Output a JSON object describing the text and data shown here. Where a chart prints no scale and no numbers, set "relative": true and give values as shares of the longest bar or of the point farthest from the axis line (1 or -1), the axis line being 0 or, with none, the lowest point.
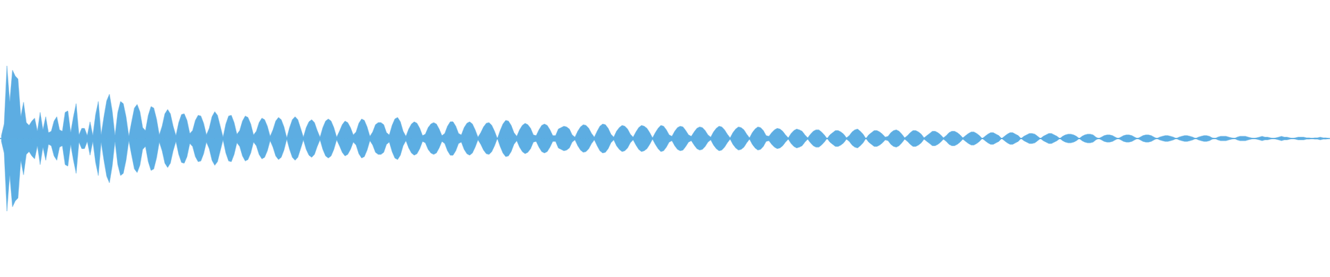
{
  "chart_data": {
    "type": "area",
    "relative": true,
    "tick_labels": false,
    "categories": [
      null,
      null,
      null,
      null,
      null,
      null,
      null,
      null,
      null,
      null,
      null,
      null,
      null,
      null,
      null,
      null,
      null,
      null,
      null,
      null,
      null,
      null,
      null,
      null,
      null,
      null,
      null,
      null,
      null,
      null,
      null,
      null,
      null,
      null,
      null,
      null,
      null,
      null,
      null,
      null,
      null,
      null,
      null,
      null,
      null,
      null,
      null,
      null,
      null,
      null,
      null,
      null,
      null,
      null,
      null,
      null,
      null,
      null,
      null,
      null,
      null,
      null,
      null,
      null,
      null,
      null,
      null,
      null,
      null,
      null,
      null,
      null,
      null,
      null,
      null,
      null,
      null,
      null,
      null,
      null,
      null,
      null,
      null,
      null,
      null,
      null,
      null,
      null,
      null,
      null,
      null,
      null,
      null,
      null,
      null,
      null,
      null,
      null,
      null,
      null,
      null,
      null,
      null,
      null,
      null,
      null,
      null,
      null,
      null,
      null,
      null,
      null,
      null,
      null,
      null,
      null,
      null,
      null,
      null,
      null,
      null,
      null,
      null,
      null,
      null,
      null,
      null,
      null,
      null,
      null,
      null,
      null,
      null,
      null,
      null,
      null,
      null,
      null,
      null,
      null,
      null,
      null,
      null,
      null,
      null,
      null,
      null,
      null,
      null,
      null,
      null,
      null,
      null,
      null,
      null,
      null,
      null,
      null,
      null,
      null,
      null,
      null,
      null,
      null,
      null,
      null,
      null,
      null,
      null,
      null,
      null,
      null,
      null,
      null,
      null,
      null,
      null,
      null,
      null,
      null,
      null,
      null,
      null,
      null,
      null,
      null,
      null,
      null,
      null,
      null,
      null,
      null,
      null,
      null,
      null,
      null,
      null,
      null,
      null,
      null,
      null,
      null,
      null,
      null,
      null,
      null,
      null,
      null,
      null,
      null,
      null,
      null,
      null,
      null,
      null,
      null,
      null,
      null,
      null,
      null,
      null,
      null,
      null,
      null,
      null,
      null,
      null,
      null,
      null,
      null,
      null,
      null,
      null,
      null,
      null,
      null,
      null,
      null,
      null,
      null,
      null,
      null,
      null,
      null,
      null,
      null,
      null,
      null,
      null,
      null,
      null,
      null,
      null,
      null,
      null,
      null,
      null,
      null,
      null,
      null,
      null,
      null,
      null,
      null,
      null,
      null,
      null,
      null,
      null,
      null,
      null,
      null,
      null,
      null,
      null,
      null,
      null,
      null,
      null,
      null,
      null,
      null,
      null,
      null,
      null,
      null,
      null,
      null,
      null,
      null,
      null,
      null,
      null,
      null,
      null,
      null,
      null,
      null,
      null,
      null,
      null,
      null,
      null,
      null,
      null,
      null,
      null,
      null,
      null,
      null,
      null,
      null,
      null,
      null,
      null,
      null,
      null,
      null,
      null,
      null,
      null,
      null,
      null,
      null,
      null,
      null,
      null,
      null,
      null,
      null,
      null,
      null,
      null,
      null,
      null,
      null,
      null,
      null,
      null,
      null,
      null,
      null,
      null,
      null,
      null,
      null,
      null,
      null,
      null,
      null,
      null,
      null,
      null,
      null,
      null,
      null,
      null,
      null,
      null,
      null,
      null,
      null,
      null,
      null,
      null,
      null,
      null,
      null,
      null,
      null,
      null,
      null,
      null,
      null,
      null,
      null,
      null,
      null,
      null,
      null,
      null,
      null,
      null,
      null,
      null,
      null,
      null,
      null,
      null,
      null,
      null,
      null,
      null,
      null,
      null,
      null,
      null,
      null,
      null,
      null,
      null,
      null,
      null,
      null,
      null,
      null,
      null,
      null,
      null,
      null,
      null,
      null,
      null,
      null,
      null,
      null,
      null,
      null,
      null,
      null,
      null,
      null,
      null,
      null,
      null,
      null,
      null,
      null,
      null,
      null,
      null,
      null,
      null,
      null,
      null,
      null,
      null,
      null,
      null,
      null,
      null,
      null,
      null,
      null,
      null,
      null,
      null,
      null,
      null,
      null,
      null,
      null,
      null,
      null,
      null,
      null,
      null,
      null,
      null,
      null,
      null,
      null,
      null,
      null,
      null,
      null,
      null,
      null,
      null,
      null,
      null,
      null,
      null,
      null,
      null,
      null,
      null,
      null,
      null,
      null
    ],
    "series": [
      {
        "color": "#5dade2",
        "values": [
          0.04,
          0.2,
          1.0,
          0.5,
          0.94,
          0.86,
          0.82,
          0.3,
          0.5,
          0.22,
          0.18,
          0.24,
          0.28,
          0.1,
          0.36,
          0.12,
          0.3,
          0.08,
          0.1,
          0.24,
          0.3,
          0.12,
          0.1,
          0.36,
          0.38,
          0.08,
          0.3,
          0.48,
          0.05,
          0.14,
          0.14,
          0.04,
          0.23,
          0.04,
          0.33,
          0.51,
          0.05,
          0.3,
          0.52,
          0.61,
          0.38,
          0.04,
          0.36,
          0.51,
          0.48,
          0.3,
          0.03,
          0.23,
          0.42,
          0.47,
          0.37,
          0.15,
          0.11,
          0.32,
          0.44,
          0.42,
          0.27,
          0.05,
          0.17,
          0.34,
          0.4,
          0.34,
          0.17,
          0.04,
          0.22,
          0.33,
          0.34,
          0.25,
          0.07,
          0.11,
          0.25,
          0.32,
          0.31,
          0.21,
          0.05,
          0.14,
          0.3,
          0.37,
          0.32,
          0.17,
          0.02,
          0.2,
          0.31,
          0.32,
          0.22,
          0.06,
          0.11,
          0.24,
          0.31,
          0.29,
          0.2,
          0.05,
          0.1,
          0.22,
          0.28,
          0.26,
          0.17,
          0.03,
          0.12,
          0.24,
          0.29,
          0.26,
          0.16,
          0.01,
          0.15,
          0.26,
          0.3,
          0.26,
          0.14,
          0.02,
          0.15,
          0.23,
          0.26,
          0.22,
          0.11,
          0.02,
          0.15,
          0.24,
          0.27,
          0.24,
          0.15,
          0.02,
          0.1,
          0.19,
          0.24,
          0.22,
          0.15,
          0.05,
          0.09,
          0.21,
          0.27,
          0.25,
          0.16,
          0.03,
          0.09,
          0.19,
          0.22,
          0.22,
          0.19,
          0.08,
          0.05,
          0.18,
          0.27,
          0.29,
          0.23,
          0.1,
          0.03,
          0.13,
          0.2,
          0.23,
          0.21,
          0.14,
          0.04,
          0.06,
          0.15,
          0.2,
          0.22,
          0.2,
          0.13,
          0.04,
          0.07,
          0.17,
          0.23,
          0.23,
          0.17,
          0.07,
          0.05,
          0.15,
          0.21,
          0.23,
          0.2,
          0.12,
          0.02,
          0.08,
          0.16,
          0.21,
          0.22,
          0.18,
          0.1,
          0,
          0.11,
          0.2,
          0.25,
          0.24,
          0.18,
          0.08,
          0.03,
          0.12,
          0.18,
          0.21,
          0.19,
          0.14,
          0.05,
          0.04,
          0.12,
          0.18,
          0.2,
          0.18,
          0.12,
          0.04,
          0.04,
          0.13,
          0.15,
          0.17,
          0.16,
          0.13,
          0.05,
          0.02,
          0.1,
          0.16,
          0.19,
          0.18,
          0.14,
          0.07,
          0.02,
          0.1,
          0.17,
          0.2,
          0.19,
          0.14,
          0.06,
          0.02,
          0.1,
          0.15,
          0.18,
          0.17,
          0.13,
          0.06,
          0.02,
          0.09,
          0.15,
          0.18,
          0.17,
          0.14,
          0.08,
          0.01,
          0.08,
          0.14,
          0.18,
          0.17,
          0.12,
          0.05,
          0.03,
          0.1,
          0.15,
          0.17,
          0.16,
          0.11,
          0.05,
          0.03,
          0.09,
          0.14,
          0.16,
          0.15,
          0.11,
          0.05,
          0.02,
          0.09,
          0.14,
          0.17,
          0.16,
          0.12,
          0.06,
          0.01,
          0.08,
          0.13,
          0.16,
          0.15,
          0.12,
          0.06,
          0.01,
          0.08,
          0.13,
          0.16,
          0.15,
          0.11,
          0.04,
          0.03,
          0.08,
          0.12,
          0.14,
          0.13,
          0.1,
          0.05,
          0.01,
          0.07,
          0.11,
          0.13,
          0.12,
          0.1,
          0.05,
          0.01,
          0.06,
          0.1,
          0.12,
          0.12,
          0.09,
          0.05,
          0,
          0.05,
          0.08,
          0.11,
          0.11,
          0.09,
          0.06,
          0.01,
          0.04,
          0.09,
          0.12,
          0.13,
          0.1,
          0.06,
          0,
          0.05,
          0.08,
          0.11,
          0.11,
          0.09,
          0.06,
          0.02,
          0.03,
          0.08,
          0.11,
          0.12,
          0.1,
          0.06,
          0.01,
          0.04,
          0.08,
          0.11,
          0.11,
          0.09,
          0.06,
          0.01,
          0.04,
          0.07,
          0.1,
          0.1,
          0.08,
          0.05,
          0.01,
          0.04,
          0.08,
          0.1,
          0.1,
          0.08,
          0.05,
          0.01,
          0.04,
          0.07,
          0.09,
          0.09,
          0.07,
          0.04,
          0,
          0.03,
          0.06,
          0.08,
          0.08,
          0.06,
          0.04,
          0,
          0.03,
          0.06,
          0.08,
          0.08,
          0.06,
          0.04,
          0,
          0.03,
          0.05,
          0.07,
          0.07,
          0.06,
          0.03,
          0,
          0.03,
          0.05,
          0.07,
          0.07,
          0.05,
          0.03,
          0,
          0.03,
          0.05,
          0.06,
          0.06,
          0.05,
          0.03,
          0,
          0.03,
          0.05,
          0.06,
          0.06,
          0.05,
          0.02,
          0,
          0.02,
          0.04,
          0.05,
          0.05,
          0.04,
          0.02,
          0,
          0.02,
          0.04,
          0.05,
          0.05,
          0.04,
          0.02,
          0,
          0.02,
          0.04,
          0.05,
          0.05,
          0.04,
          0.02,
          0,
          0.02,
          0.03,
          0.04,
          0.04,
          0.03,
          0.02,
          0,
          0.02,
          0.03,
          0.04,
          0.04,
          0.03,
          0.02,
          0,
          0.02,
          0.03,
          0.04,
          0.04,
          0.03,
          0.01,
          0,
          0.02,
          0.03,
          0.03,
          0.03,
          0.02,
          0.01,
          0,
          0.02,
          0.03,
          0.03,
          0.03,
          0.02,
          0.01,
          0,
          0.01,
          0.02,
          0.03,
          0.02,
          0.02,
          0.01,
          0,
          0.01,
          0.02,
          0.03,
          0.02,
          0.02,
          0.01,
          0,
          0.01,
          0.02,
          0.02,
          0.02,
          0.01,
          0.01,
          0,
          0.01,
          0.01,
          0.02,
          0.01,
          0.01,
          0
        ]
      },
      {
        "color": "#5caee3",
        "values": [
          -0.04,
          -0.2,
          -1.0,
          -0.5,
          -0.94,
          -0.86,
          -0.82,
          -0.3,
          -0.5,
          -0.22,
          -0.18,
          -0.24,
          -0.28,
          -0.1,
          -0.36,
          -0.12,
          -0.3,
          -0.08,
          -0.1,
          -0.24,
          -0.3,
          -0.12,
          -0.1,
          -0.36,
          -0.38,
          -0.08,
          -0.3,
          -0.48,
          -0.05,
          -0.14,
          -0.14,
          -0.04,
          -0.23,
          -0.04,
          -0.33,
          -0.51,
          -0.05,
          -0.3,
          -0.52,
          -0.61,
          -0.38,
          -0.04,
          -0.36,
          -0.51,
          -0.48,
          -0.3,
          -0.03,
          -0.23,
          -0.42,
          -0.47,
          -0.37,
          -0.15,
          -0.11,
          -0.32,
          -0.44,
          -0.42,
          -0.27,
          -0.05,
          -0.17,
          -0.34,
          -0.4,
          -0.34,
          -0.17,
          -0.04,
          -0.22,
          -0.33,
          -0.34,
          -0.25,
          -0.07,
          -0.11,
          -0.25,
          -0.32,
          -0.31,
          -0.21,
          -0.05,
          -0.14,
          -0.3,
          -0.37,
          -0.32,
          -0.17,
          -0.02,
          -0.2,
          -0.31,
          -0.32,
          -0.22,
          -0.06,
          -0.11,
          -0.24,
          -0.31,
          -0.29,
          -0.2,
          -0.05,
          -0.1,
          -0.22,
          -0.28,
          -0.26,
          -0.17,
          -0.03,
          -0.12,
          -0.24,
          -0.29,
          -0.26,
          -0.16,
          -0.01,
          -0.15,
          -0.26,
          -0.3,
          -0.26,
          -0.14,
          -0.02,
          -0.15,
          -0.23,
          -0.26,
          -0.22,
          -0.11,
          -0.02,
          -0.15,
          -0.24,
          -0.27,
          -0.24,
          -0.15,
          -0.02,
          -0.1,
          -0.19,
          -0.24,
          -0.22,
          -0.15,
          -0.05,
          -0.09,
          -0.21,
          -0.27,
          -0.25,
          -0.16,
          -0.03,
          -0.09,
          -0.19,
          -0.22,
          -0.22,
          -0.19,
          -0.08,
          -0.05,
          -0.18,
          -0.27,
          -0.29,
          -0.23,
          -0.1,
          -0.03,
          -0.13,
          -0.2,
          -0.23,
          -0.21,
          -0.14,
          -0.04,
          -0.06,
          -0.15,
          -0.2,
          -0.22,
          -0.2,
          -0.13,
          -0.04,
          -0.07,
          -0.17,
          -0.23,
          -0.23,
          -0.17,
          -0.07,
          -0.05,
          -0.15,
          -0.21,
          -0.23,
          -0.2,
          -0.12,
          -0.02,
          -0.08,
          -0.16,
          -0.21,
          -0.22,
          -0.18,
          -0.1,
          0,
          -0.11,
          -0.2,
          -0.25,
          -0.24,
          -0.18,
          -0.08,
          -0.03,
          -0.12,
          -0.18,
          -0.21,
          -0.19,
          -0.14,
          -0.05,
          -0.04,
          -0.12,
          -0.18,
          -0.2,
          -0.18,
          -0.12,
          -0.04,
          -0.04,
          -0.13,
          -0.15,
          -0.17,
          -0.16,
          -0.13,
          -0.05,
          -0.02,
          -0.1,
          -0.16,
          -0.19,
          -0.18,
          -0.14,
          -0.07,
          -0.02,
          -0.1,
          -0.17,
          -0.2,
          -0.19,
          -0.14,
          -0.06,
          -0.02,
          -0.1,
          -0.15,
          -0.18,
          -0.17,
          -0.13,
          -0.06,
          -0.02,
          -0.09,
          -0.15,
          -0.18,
          -0.17,
          -0.14,
          -0.08,
          -0.01,
          -0.08,
          -0.14,
          -0.18,
          -0.17,
          -0.12,
          -0.05,
          -0.03,
          -0.1,
          -0.15,
          -0.17,
          -0.16,
          -0.11,
          -0.05,
          -0.03,
          -0.09,
          -0.14,
          -0.16,
          -0.15,
          -0.11,
          -0.05,
          -0.02,
          -0.09,
          -0.14,
          -0.17,
          -0.16,
          -0.12,
          -0.06,
          -0.01,
          -0.08,
          -0.13,
          -0.16,
          -0.15,
          -0.12,
          -0.06,
          -0.01,
          -0.08,
          -0.13,
          -0.16,
          -0.15,
          -0.11,
          -0.04,
          -0.03,
          -0.08,
          -0.12,
          -0.14,
          -0.13,
          -0.1,
          -0.05,
          -0.01,
          -0.07,
          -0.11,
          -0.13,
          -0.12,
          -0.1,
          -0.05,
          -0.01,
          -0.06,
          -0.1,
          -0.12,
          -0.12,
          -0.09,
          -0.05,
          0,
          -0.05,
          -0.08,
          -0.11,
          -0.11,
          -0.09,
          -0.06,
          -0.01,
          -0.04,
          -0.09,
          -0.12,
          -0.13,
          -0.1,
          -0.06,
          0,
          -0.05,
          -0.08,
          -0.11,
          -0.11,
          -0.09,
          -0.06,
          -0.02,
          -0.03,
          -0.08,
          -0.11,
          -0.12,
          -0.1,
          -0.06,
          -0.01,
          -0.04,
          -0.08,
          -0.11,
          -0.11,
          -0.09,
          -0.06,
          -0.01,
          -0.04,
          -0.07,
          -0.1,
          -0.1,
          -0.08,
          -0.05,
          -0.01,
          -0.04,
          -0.08,
          -0.1,
          -0.1,
          -0.08,
          -0.05,
          -0.01,
          -0.04,
          -0.07,
          -0.09,
          -0.09,
          -0.07,
          -0.04,
          0,
          -0.03,
          -0.06,
          -0.08,
          -0.08,
          -0.06,
          -0.04,
          0,
          -0.03,
          -0.06,
          -0.08,
          -0.08,
          -0.06,
          -0.04,
          0,
          -0.03,
          -0.05,
          -0.07,
          -0.07,
          -0.06,
          -0.03,
          0,
          -0.03,
          -0.05,
          -0.07,
          -0.07,
          -0.05,
          -0.03,
          0,
          -0.03,
          -0.05,
          -0.06,
          -0.06,
          -0.05,
          -0.03,
          0,
          -0.03,
          -0.05,
          -0.06,
          -0.06,
          -0.05,
          -0.02,
          0,
          -0.02,
          -0.04,
          -0.05,
          -0.05,
          -0.04,
          -0.02,
          0,
          -0.02,
          -0.04,
          -0.05,
          -0.05,
          -0.04,
          -0.02,
          0,
          -0.02,
          -0.04,
          -0.05,
          -0.05,
          -0.04,
          -0.02,
          0,
          -0.02,
          -0.03,
          -0.04,
          -0.04,
          -0.03,
          -0.02,
          0,
          -0.02,
          -0.03,
          -0.04,
          -0.04,
          -0.03,
          -0.02,
          0,
          -0.02,
          -0.03,
          -0.04,
          -0.04,
          -0.03,
          -0.01,
          0,
          -0.02,
          -0.03,
          -0.03,
          -0.03,
          -0.02,
          -0.01,
          0,
          -0.02,
          -0.03,
          -0.03,
          -0.03,
          -0.02,
          -0.01,
          0,
          -0.01,
          -0.02,
          -0.03,
          -0.02,
          -0.02,
          -0.01,
          0,
          -0.01,
          -0.02,
          -0.03,
          -0.02,
          -0.02,
          -0.01,
          0,
          -0.01,
          -0.02,
          -0.02,
          -0.02,
          -0.01,
          -0.01,
          0,
          -0.01,
          -0.01,
          -0.02,
          -0.01,
          -0.01,
          0
        ]
      }
    ]
  }
}
